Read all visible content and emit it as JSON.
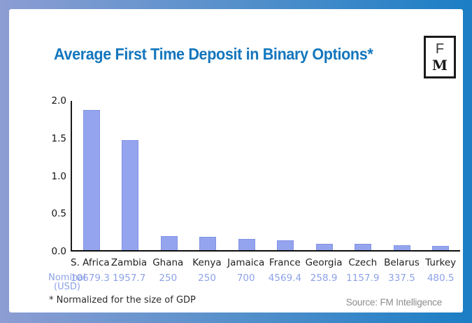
{
  "title": "Average First Time Deposit in Binary Options*",
  "logo": {
    "top_letter": "F",
    "bottom_letter": "M"
  },
  "chart_data": {
    "type": "bar",
    "title": "Average First Time Deposit in Binary Options*",
    "categories": [
      "S. Africa",
      "Zambia",
      "Ghana",
      "Kenya",
      "Jamaica",
      "France",
      "Georgia",
      "Czech",
      "Belarus",
      "Turkey"
    ],
    "series": [
      {
        "name": "Normalized for the size of GDP",
        "values": [
          1.88,
          1.47,
          0.19,
          0.18,
          0.15,
          0.13,
          0.08,
          0.08,
          0.065,
          0.055
        ]
      },
      {
        "name": "Nominal (USD)",
        "values": [
          "10679.3",
          "1957.7",
          "250",
          "250",
          "700",
          "4569.4",
          "258.9",
          "1157.9",
          "337.5",
          "480.5"
        ]
      }
    ],
    "ylim": [
      0,
      2.0
    ],
    "yticks": [
      "2.0",
      "1.5",
      "1.0",
      "0.5",
      "0.0"
    ],
    "grid": false,
    "legend": "none",
    "bar_color": "#94a4ee",
    "row_label": {
      "line1": "Nominal",
      "line2": "(USD)"
    }
  },
  "footnote": "* Normalized for the size of GDP",
  "source": "Source: FM Intelligence",
  "colors": {
    "title_blue": "#1476bd",
    "bar_fill": "#94a4ee",
    "bar_edge": "#8392e6",
    "nominal_text": "#8da2e8",
    "axis": "#1a1a1a",
    "source_gray": "#8d8d8d",
    "frame_gradient_left": "#8c9dd3",
    "frame_gradient_right": "#1b7ec5"
  }
}
